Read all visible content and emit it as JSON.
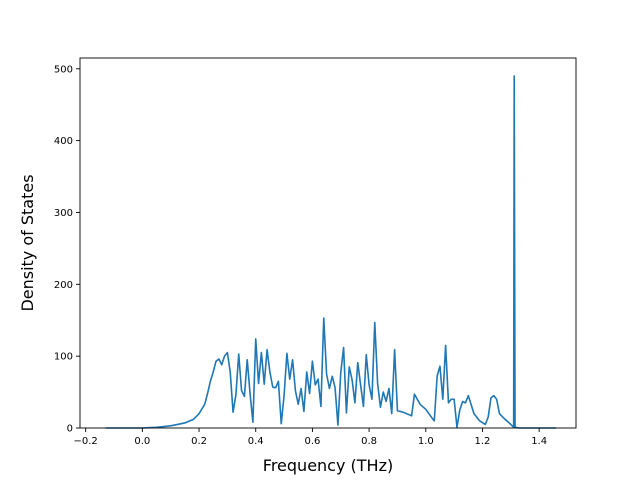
{
  "chart_data": {
    "type": "line",
    "title": "",
    "xlabel": "Frequency (THz)",
    "ylabel": "Density of States",
    "xlim": [
      -0.22,
      1.53
    ],
    "ylim": [
      0,
      515
    ],
    "xticks": [
      -0.2,
      0.0,
      0.2,
      0.4,
      0.6,
      0.8,
      1.0,
      1.2,
      1.4
    ],
    "xtick_labels": [
      "−0.2",
      "0.0",
      "0.2",
      "0.4",
      "0.6",
      "0.8",
      "1.0",
      "1.2",
      "1.4"
    ],
    "yticks": [
      0,
      100,
      200,
      300,
      400,
      500
    ],
    "ytick_labels": [
      "0",
      "100",
      "200",
      "300",
      "400",
      "500"
    ],
    "grid": false,
    "legend": "none",
    "series_color": "#1f77b4",
    "series": [
      {
        "values": [
          [
            -0.13,
            0
          ],
          [
            0.0,
            0
          ],
          [
            0.05,
            1
          ],
          [
            0.1,
            3
          ],
          [
            0.15,
            7
          ],
          [
            0.18,
            12
          ],
          [
            0.2,
            20
          ],
          [
            0.22,
            33
          ],
          [
            0.23,
            48
          ],
          [
            0.24,
            65
          ],
          [
            0.25,
            78
          ],
          [
            0.26,
            93
          ],
          [
            0.27,
            96
          ],
          [
            0.28,
            88
          ],
          [
            0.29,
            100
          ],
          [
            0.3,
            105
          ],
          [
            0.31,
            78
          ],
          [
            0.32,
            22
          ],
          [
            0.33,
            46
          ],
          [
            0.34,
            103
          ],
          [
            0.35,
            52
          ],
          [
            0.36,
            44
          ],
          [
            0.37,
            95
          ],
          [
            0.38,
            48
          ],
          [
            0.39,
            8
          ],
          [
            0.4,
            124
          ],
          [
            0.41,
            62
          ],
          [
            0.42,
            105
          ],
          [
            0.43,
            61
          ],
          [
            0.44,
            109
          ],
          [
            0.45,
            78
          ],
          [
            0.46,
            57
          ],
          [
            0.47,
            56
          ],
          [
            0.48,
            65
          ],
          [
            0.49,
            6
          ],
          [
            0.5,
            45
          ],
          [
            0.51,
            104
          ],
          [
            0.52,
            68
          ],
          [
            0.53,
            95
          ],
          [
            0.54,
            52
          ],
          [
            0.55,
            33
          ],
          [
            0.56,
            55
          ],
          [
            0.57,
            23
          ],
          [
            0.58,
            78
          ],
          [
            0.59,
            48
          ],
          [
            0.6,
            93
          ],
          [
            0.61,
            60
          ],
          [
            0.62,
            68
          ],
          [
            0.63,
            30
          ],
          [
            0.64,
            153
          ],
          [
            0.65,
            75
          ],
          [
            0.66,
            55
          ],
          [
            0.67,
            72
          ],
          [
            0.68,
            56
          ],
          [
            0.69,
            4
          ],
          [
            0.7,
            77
          ],
          [
            0.71,
            112
          ],
          [
            0.72,
            21
          ],
          [
            0.73,
            85
          ],
          [
            0.74,
            67
          ],
          [
            0.75,
            35
          ],
          [
            0.76,
            91
          ],
          [
            0.77,
            60
          ],
          [
            0.78,
            30
          ],
          [
            0.79,
            102
          ],
          [
            0.8,
            60
          ],
          [
            0.81,
            40
          ],
          [
            0.82,
            147
          ],
          [
            0.83,
            62
          ],
          [
            0.84,
            29
          ],
          [
            0.85,
            50
          ],
          [
            0.86,
            37
          ],
          [
            0.87,
            55
          ],
          [
            0.88,
            20
          ],
          [
            0.89,
            109
          ],
          [
            0.9,
            24
          ],
          [
            0.92,
            22
          ],
          [
            0.95,
            17
          ],
          [
            0.96,
            47
          ],
          [
            0.98,
            33
          ],
          [
            1.0,
            26
          ],
          [
            1.02,
            15
          ],
          [
            1.03,
            10
          ],
          [
            1.04,
            72
          ],
          [
            1.05,
            86
          ],
          [
            1.06,
            40
          ],
          [
            1.07,
            115
          ],
          [
            1.08,
            35
          ],
          [
            1.09,
            40
          ],
          [
            1.1,
            40
          ],
          [
            1.11,
            1
          ],
          [
            1.12,
            25
          ],
          [
            1.13,
            37
          ],
          [
            1.14,
            35
          ],
          [
            1.15,
            45
          ],
          [
            1.17,
            20
          ],
          [
            1.19,
            10
          ],
          [
            1.21,
            5
          ],
          [
            1.22,
            15
          ],
          [
            1.23,
            42
          ],
          [
            1.24,
            45
          ],
          [
            1.25,
            40
          ],
          [
            1.26,
            20
          ],
          [
            1.28,
            12
          ],
          [
            1.3,
            5
          ],
          [
            1.31,
            1
          ],
          [
            1.312,
            490
          ],
          [
            1.315,
            1
          ],
          [
            1.33,
            0
          ],
          [
            1.36,
            0
          ],
          [
            1.46,
            0
          ]
        ]
      }
    ]
  }
}
